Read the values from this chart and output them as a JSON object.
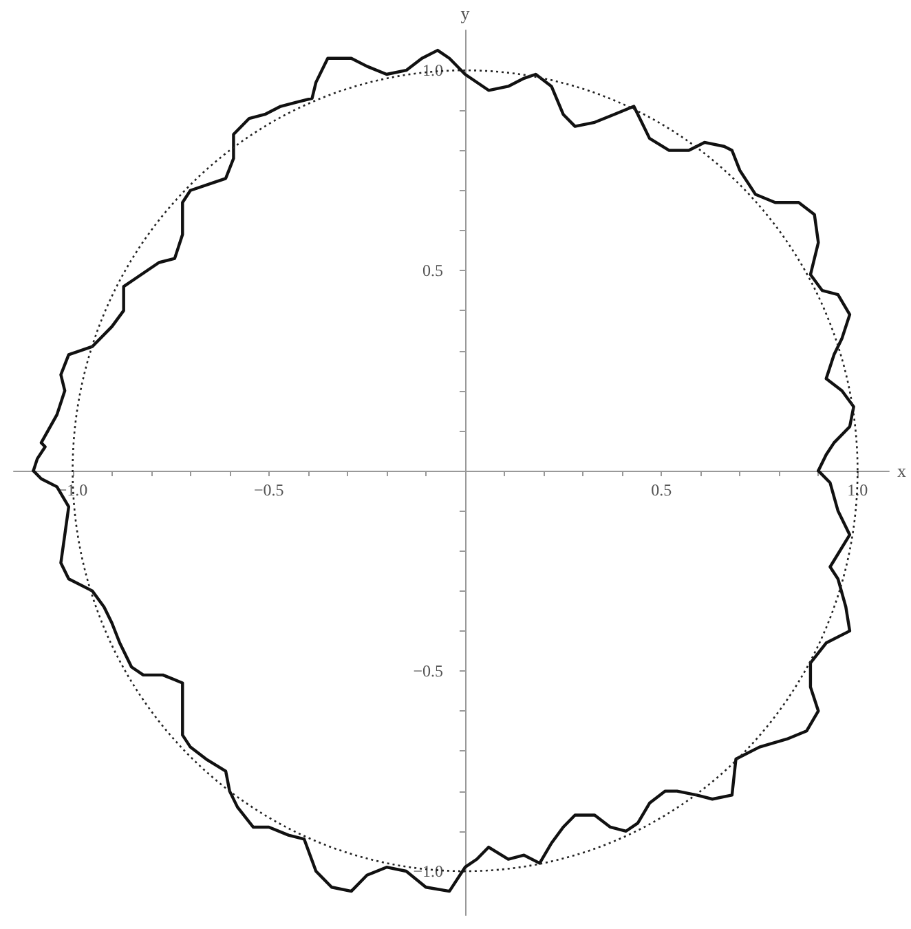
{
  "chart_data": {
    "type": "line",
    "xlabel": "x",
    "ylabel": "y",
    "xlim": [
      -1.15,
      1.08
    ],
    "ylim": [
      -1.11,
      1.1
    ],
    "grid": false,
    "xticks": [
      {
        "value": -1,
        "label": "−1.0"
      },
      {
        "value": -0.9,
        "label": null
      },
      {
        "value": -0.8,
        "label": null
      },
      {
        "value": -0.7,
        "label": null
      },
      {
        "value": -0.6,
        "label": null
      },
      {
        "value": -0.5,
        "label": "−0.5"
      },
      {
        "value": -0.4,
        "label": null
      },
      {
        "value": -0.3,
        "label": null
      },
      {
        "value": -0.2,
        "label": null
      },
      {
        "value": -0.1,
        "label": null
      },
      {
        "value": 0.1,
        "label": null
      },
      {
        "value": 0.2,
        "label": null
      },
      {
        "value": 0.3,
        "label": null
      },
      {
        "value": 0.4,
        "label": null
      },
      {
        "value": 0.5,
        "label": "0.5"
      },
      {
        "value": 0.6,
        "label": null
      },
      {
        "value": 0.7,
        "label": null
      },
      {
        "value": 0.8,
        "label": null
      },
      {
        "value": 0.9,
        "label": null
      },
      {
        "value": 1,
        "label": "1.0"
      }
    ],
    "yticks": [
      {
        "value": -1,
        "label": "−1.0"
      },
      {
        "value": -0.9,
        "label": null
      },
      {
        "value": -0.8,
        "label": null
      },
      {
        "value": -0.7,
        "label": null
      },
      {
        "value": -0.6,
        "label": null
      },
      {
        "value": -0.5,
        "label": "−0.5"
      },
      {
        "value": -0.4,
        "label": null
      },
      {
        "value": -0.3,
        "label": null
      },
      {
        "value": -0.2,
        "label": null
      },
      {
        "value": -0.1,
        "label": null
      },
      {
        "value": 0.1,
        "label": null
      },
      {
        "value": 0.2,
        "label": null
      },
      {
        "value": 0.3,
        "label": null
      },
      {
        "value": 0.4,
        "label": null
      },
      {
        "value": 0.5,
        "label": "0.5"
      },
      {
        "value": 0.6,
        "label": null
      },
      {
        "value": 0.7,
        "label": null
      },
      {
        "value": 0.8,
        "label": null
      },
      {
        "value": 0.9,
        "label": null
      },
      {
        "value": 1,
        "label": "1.0"
      }
    ],
    "series": [
      {
        "color": "#111111",
        "line_style": "solid",
        "x": [
          -1.1,
          -1.09,
          -1.07,
          -1.08,
          -1.04,
          -1.02,
          -1.03,
          -1.01,
          -0.95,
          -0.9,
          -0.87,
          -0.87,
          -0.84,
          -0.78,
          -0.74,
          -0.72,
          -0.72,
          -0.7,
          -0.64,
          -0.61,
          -0.59,
          -0.59,
          -0.55,
          -0.51,
          -0.47,
          -0.43,
          -0.39,
          -0.38,
          -0.35,
          -0.29,
          -0.25,
          -0.2,
          -0.15,
          -0.11,
          -0.07,
          -0.04,
          0,
          0.06,
          0.11,
          0.15,
          0.18,
          0.22,
          0.25,
          0.28,
          0.33,
          0.38,
          0.43,
          0.45,
          0.47,
          0.52,
          0.57,
          0.61,
          0.66,
          0.68,
          0.7,
          0.74,
          0.79,
          0.85,
          0.89,
          0.9,
          0.88,
          0.91,
          0.95,
          0.98,
          0.96,
          0.94,
          0.92,
          0.96,
          0.99,
          0.98,
          0.94,
          0.92,
          0.9
        ],
        "values": [
          0,
          0.03,
          0.06,
          0.07,
          0.14,
          0.2,
          0.24,
          0.29,
          0.31,
          0.36,
          0.4,
          0.46,
          0.48,
          0.52,
          0.53,
          0.59,
          0.67,
          0.7,
          0.72,
          0.73,
          0.78,
          0.84,
          0.88,
          0.89,
          0.91,
          0.92,
          0.93,
          0.97,
          1.03,
          1.03,
          1.01,
          0.99,
          1,
          1.03,
          1.05,
          1.03,
          0.99,
          0.95,
          0.96,
          0.98,
          0.99,
          0.96,
          0.89,
          0.86,
          0.87,
          0.89,
          0.91,
          0.87,
          0.83,
          0.8,
          0.8,
          0.82,
          0.81,
          0.8,
          0.75,
          0.69,
          0.67,
          0.67,
          0.64,
          0.57,
          0.49,
          0.45,
          0.44,
          0.39,
          0.33,
          0.29,
          0.23,
          0.2,
          0.16,
          0.11,
          0.07,
          0.04,
          0
        ]
      },
      {
        "color": "#111111",
        "line_style": "solid",
        "x": [
          0.9,
          0.93,
          0.95,
          0.98,
          0.93,
          0.95,
          0.97,
          0.98,
          0.92,
          0.88,
          0.88,
          0.9,
          0.87,
          0.82,
          0.75,
          0.69,
          0.68,
          0.63,
          0.59,
          0.54,
          0.51,
          0.47,
          0.44,
          0.41,
          0.37,
          0.33,
          0.28,
          0.25,
          0.22,
          0.19,
          0.15,
          0.11,
          0.06,
          0.03,
          0,
          -0.04,
          -0.1,
          -0.15,
          -0.2,
          -0.25,
          -0.29,
          -0.34,
          -0.38,
          -0.41,
          -0.45,
          -0.5,
          -0.54,
          -0.58,
          -0.6,
          -0.61,
          -0.66,
          -0.7,
          -0.72,
          -0.72,
          -0.72,
          -0.77,
          -0.82,
          -0.85,
          -0.88,
          -0.9,
          -0.92,
          -0.95,
          -1.01,
          -1.03,
          -1.02,
          -1.01,
          -1.04,
          -1.08,
          -1.1
        ],
        "values": [
          0,
          -0.03,
          -0.1,
          -0.16,
          -0.24,
          -0.27,
          -0.34,
          -0.4,
          -0.43,
          -0.48,
          -0.54,
          -0.6,
          -0.65,
          -0.67,
          -0.69,
          -0.72,
          -0.81,
          -0.82,
          -0.81,
          -0.8,
          -0.8,
          -0.83,
          -0.88,
          -0.9,
          -0.89,
          -0.86,
          -0.86,
          -0.89,
          -0.93,
          -0.98,
          -0.96,
          -0.97,
          -0.94,
          -0.97,
          -0.99,
          -1.05,
          -1.04,
          -1,
          -0.99,
          -1.01,
          -1.05,
          -1.04,
          -1,
          -0.92,
          -0.91,
          -0.89,
          -0.89,
          -0.84,
          -0.8,
          -0.75,
          -0.72,
          -0.69,
          -0.66,
          -0.6,
          -0.53,
          -0.51,
          -0.51,
          -0.49,
          -0.43,
          -0.38,
          -0.34,
          -0.3,
          -0.27,
          -0.23,
          -0.16,
          -0.09,
          -0.04,
          -0.02,
          0
        ]
      }
    ]
  }
}
